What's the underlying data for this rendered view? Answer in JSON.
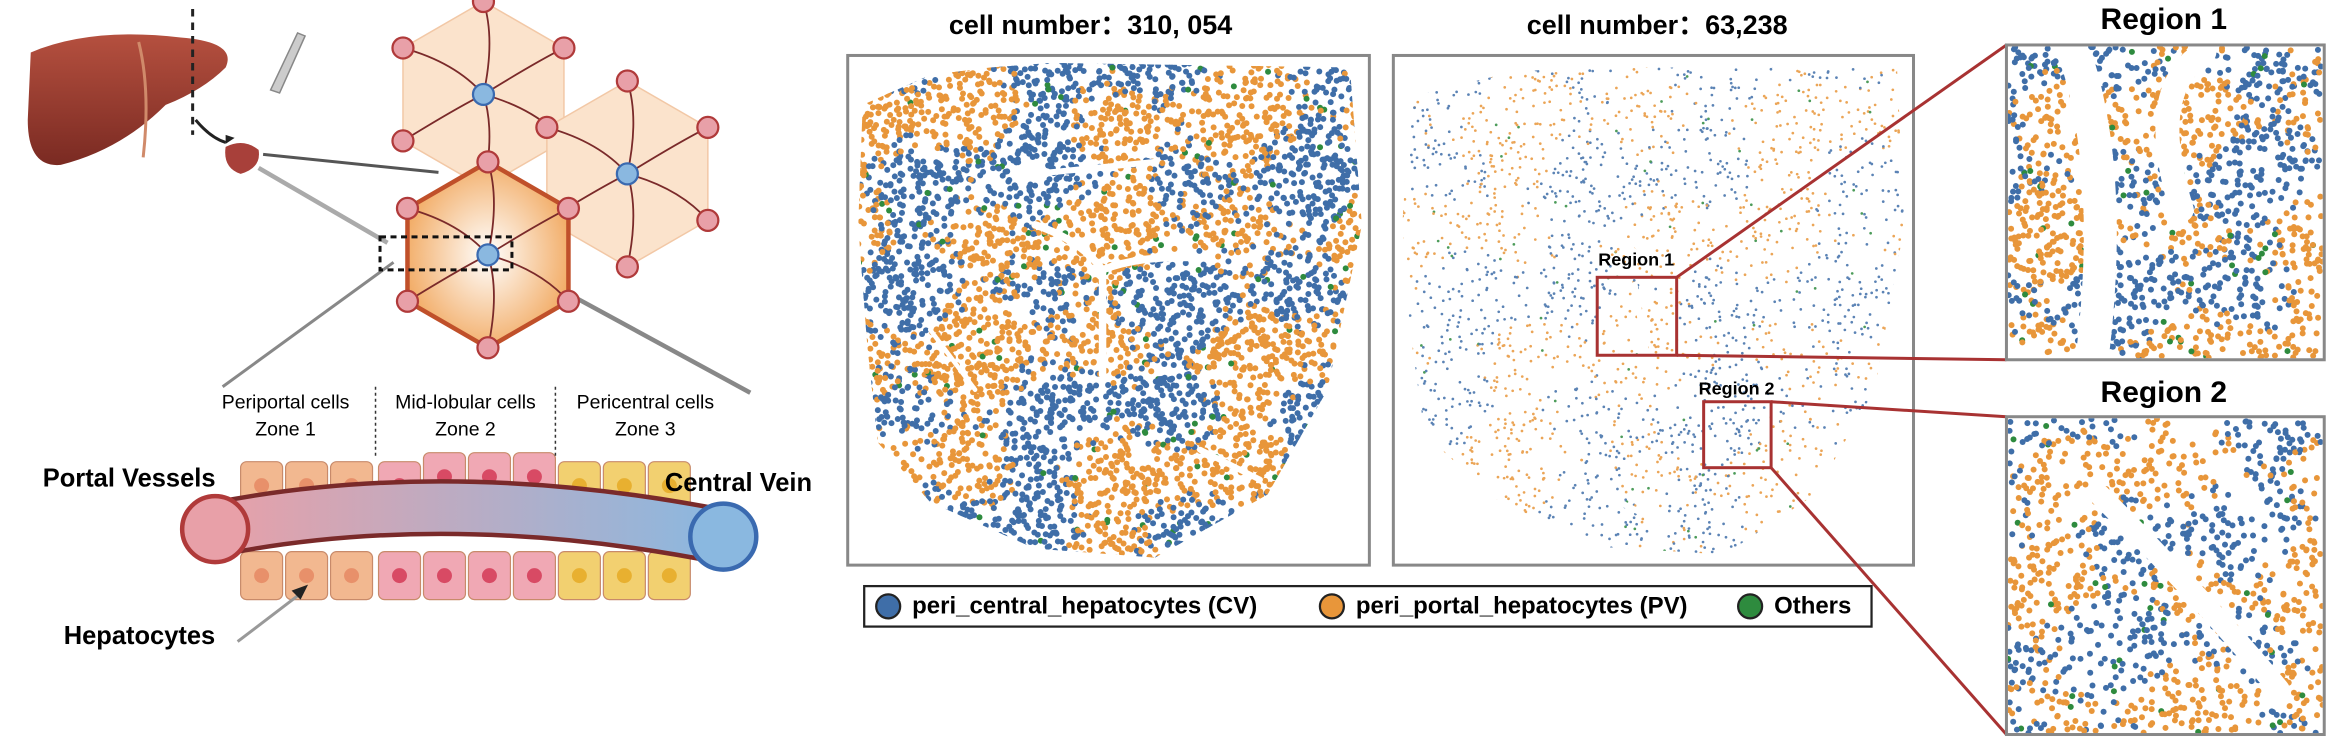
{
  "diagram": {
    "zones": [
      {
        "name": "Periportal cells",
        "zone": "Zone 1"
      },
      {
        "name": "Mid-lobular cells",
        "zone": "Zone 2"
      },
      {
        "name": "Pericentral cells",
        "zone": "Zone 3"
      }
    ],
    "labels": {
      "portal": "Portal Vessels",
      "central": "Central Vein",
      "hepatocytes": "Hepatocytes"
    }
  },
  "panels": [
    {
      "title": "cell number：310, 054"
    },
    {
      "title": "cell number：63,238",
      "regions": [
        "Region 1",
        "Region 2"
      ]
    }
  ],
  "legend": [
    {
      "name": "peri_central_hepatocytes (CV)",
      "color": "#3f6ea8"
    },
    {
      "name": "peri_portal_hepatocytes (PV)",
      "color": "#e8963a"
    },
    {
      "name": "Others",
      "color": "#2e8b3e"
    }
  ],
  "zooms": [
    {
      "title": "Region 1"
    },
    {
      "title": "Region 2"
    }
  ]
}
